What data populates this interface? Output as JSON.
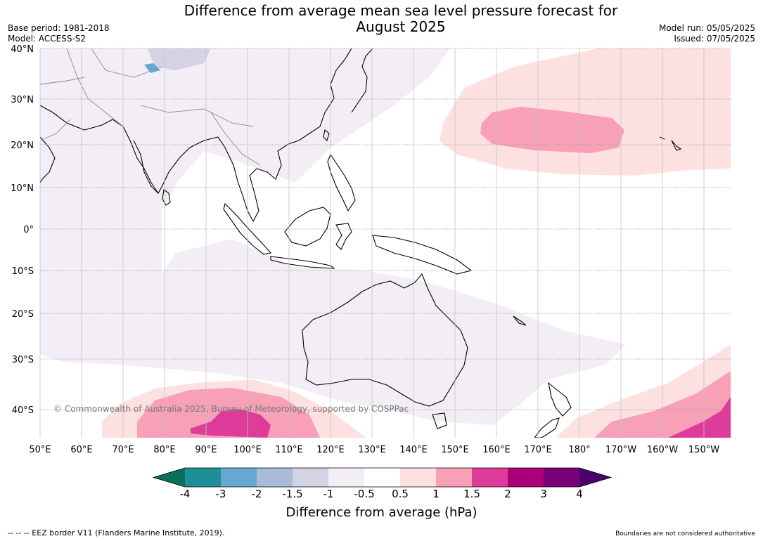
{
  "title_line1": "Difference from average mean sea level pressure forecast for",
  "title_line2": "August 2025",
  "base_period": "Base period: 1981-2018",
  "model": "Model: ACCESS-S2",
  "model_run": "Model run: 05/05/2025",
  "issued": "Issued: 07/05/2025",
  "copyright": "© Commonwealth of Australia 2025, Bureau of Meteorology, supported by COSPPac",
  "lat_labels": [
    "40°N",
    "30°N",
    "20°N",
    "10°N",
    "0°",
    "10°S",
    "20°S",
    "30°S",
    "40°S"
  ],
  "lon_labels": [
    "50°E",
    "60°E",
    "70°E",
    "80°E",
    "90°E",
    "100°E",
    "110°E",
    "120°E",
    "130°E",
    "140°E",
    "150°E",
    "160°E",
    "170°E",
    "180°",
    "170°W",
    "160°W",
    "150°W"
  ],
  "colorbar": {
    "ticks": [
      "-4",
      "-3",
      "-2",
      "-1.5",
      "-1",
      "-0.5",
      "0.5",
      "1",
      "1.5",
      "2",
      "3",
      "4"
    ],
    "colors": [
      "#0c6e5c",
      "#1e8f96",
      "#66a9d0",
      "#a9bbd9",
      "#d3d3e4",
      "#f3eef6",
      "#ffffff",
      "#fde0e0",
      "#f7a0b8",
      "#de3c9a",
      "#ab0077",
      "#7a0077",
      "#4a006a"
    ],
    "label": "Difference from average (hPa)"
  },
  "footer_left": "--  --  -- EEZ border V11 (Flanders Marine Institute, 2019).",
  "footer_right": "Boundaries are not considered authoritative"
}
